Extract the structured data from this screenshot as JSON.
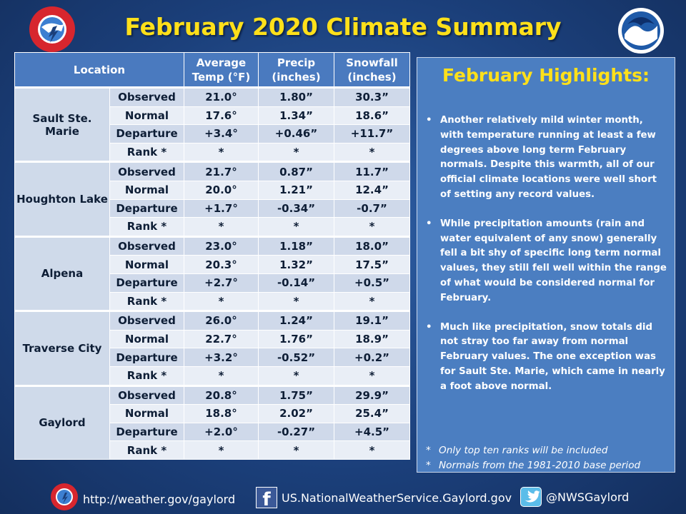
{
  "title": "February 2020 Climate Summary",
  "logos": {
    "left": "nws-logo-icon",
    "right": "noaa-logo-icon"
  },
  "table": {
    "headers": {
      "location": "Location",
      "temp": "Average Temp (°F)",
      "precip": "Precip (inches)",
      "snow": "Snowfall (inches)"
    },
    "locations": [
      {
        "name": "Sault Ste. Marie",
        "rows": [
          {
            "type": "Observed",
            "temp": "21.0°",
            "precip": "1.80”",
            "snow": "30.3”"
          },
          {
            "type": "Normal",
            "temp": "17.6°",
            "precip": "1.34”",
            "snow": "18.6”"
          },
          {
            "type": "Departure",
            "temp": "+3.4°",
            "precip": "+0.46”",
            "snow": "+11.7”"
          },
          {
            "type": "Rank *",
            "temp": "*",
            "precip": "*",
            "snow": "*"
          }
        ]
      },
      {
        "name": "Houghton Lake",
        "rows": [
          {
            "type": "Observed",
            "temp": "21.7°",
            "precip": "0.87”",
            "snow": "11.7”"
          },
          {
            "type": "Normal",
            "temp": "20.0°",
            "precip": "1.21”",
            "snow": "12.4”"
          },
          {
            "type": "Departure",
            "temp": "+1.7°",
            "precip": "-0.34”",
            "snow": "-0.7”"
          },
          {
            "type": "Rank *",
            "temp": "*",
            "precip": "*",
            "snow": "*"
          }
        ]
      },
      {
        "name": "Alpena",
        "rows": [
          {
            "type": "Observed",
            "temp": "23.0°",
            "precip": "1.18”",
            "snow": "18.0”"
          },
          {
            "type": "Normal",
            "temp": "20.3°",
            "precip": "1.32”",
            "snow": "17.5”"
          },
          {
            "type": "Departure",
            "temp": "+2.7°",
            "precip": "-0.14”",
            "snow": "+0.5”"
          },
          {
            "type": "Rank *",
            "temp": "*",
            "precip": "*",
            "snow": "*"
          }
        ]
      },
      {
        "name": "Traverse City",
        "rows": [
          {
            "type": "Observed",
            "temp": "26.0°",
            "precip": "1.24”",
            "snow": "19.1”"
          },
          {
            "type": "Normal",
            "temp": "22.7°",
            "precip": "1.76”",
            "snow": "18.9”"
          },
          {
            "type": "Departure",
            "temp": "+3.2°",
            "precip": "-0.52”",
            "snow": "+0.2”"
          },
          {
            "type": "Rank *",
            "temp": "*",
            "precip": "*",
            "snow": "*"
          }
        ]
      },
      {
        "name": "Gaylord",
        "rows": [
          {
            "type": "Observed",
            "temp": "20.8°",
            "precip": "1.75”",
            "snow": "29.9”"
          },
          {
            "type": "Normal",
            "temp": "18.8°",
            "precip": "2.02”",
            "snow": "25.4”"
          },
          {
            "type": "Departure",
            "temp": "+2.0°",
            "precip": "-0.27”",
            "snow": "+4.5”"
          },
          {
            "type": "Rank *",
            "temp": "*",
            "precip": "*",
            "snow": "*"
          }
        ]
      }
    ]
  },
  "highlights": {
    "title": "February Highlights:",
    "bullet_glyph": "•",
    "items": [
      "Another relatively mild winter month, with temperature running at least a few degrees above long term February normals. Despite this warmth, all of our official climate locations were well short of setting any record values.",
      "While precipitation amounts (rain and water equivalent of any snow) generally fell a bit shy of specific long term normal values, they still fell well within the range of what would be considered normal for February.",
      "Much like precipitation, snow totals did not stray too far away from normal February values. The one exception was for Sault Ste. Marie, which came in nearly a foot above normal."
    ],
    "note_glyph": "*",
    "notes": [
      "Only top ten ranks will be included",
      "Normals from the 1981-2010 base period"
    ]
  },
  "footer": {
    "website": "http://weather.gov/gaylord",
    "facebook": "US.NationalWeatherService.Gaylord.gov",
    "twitter": "@NWSGaylord",
    "icons": {
      "web": "nws-small-logo-icon",
      "facebook": "facebook-icon",
      "twitter": "twitter-icon"
    },
    "facebook_glyph": "f"
  }
}
